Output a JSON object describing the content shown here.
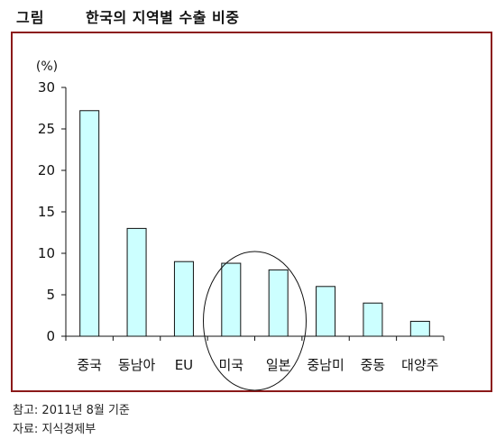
{
  "figure": {
    "label": "그림",
    "title": "한국의 지역별 수출 비중"
  },
  "notes": {
    "reference": "참고: 2011년 8월 기준",
    "source": "자료: 지식경제부"
  },
  "chart_data": {
    "type": "bar",
    "unit_label": "(%)",
    "categories": [
      "중국",
      "동남아",
      "EU",
      "미국",
      "일본",
      "중남미",
      "중동",
      "대양주"
    ],
    "values": [
      27.2,
      13.0,
      9.0,
      8.8,
      8.0,
      6.0,
      4.0,
      1.8
    ],
    "ylim": [
      0,
      30
    ],
    "yticks": [
      0,
      5,
      10,
      15,
      20,
      25,
      30
    ],
    "grid": false,
    "legend": "none",
    "highlighted_categories": [
      "미국",
      "일본"
    ],
    "colors": {
      "bar_fill": "#ccffff",
      "bar_stroke": "#111111",
      "frame": "#8b1a1a",
      "axis": "#111111"
    }
  }
}
